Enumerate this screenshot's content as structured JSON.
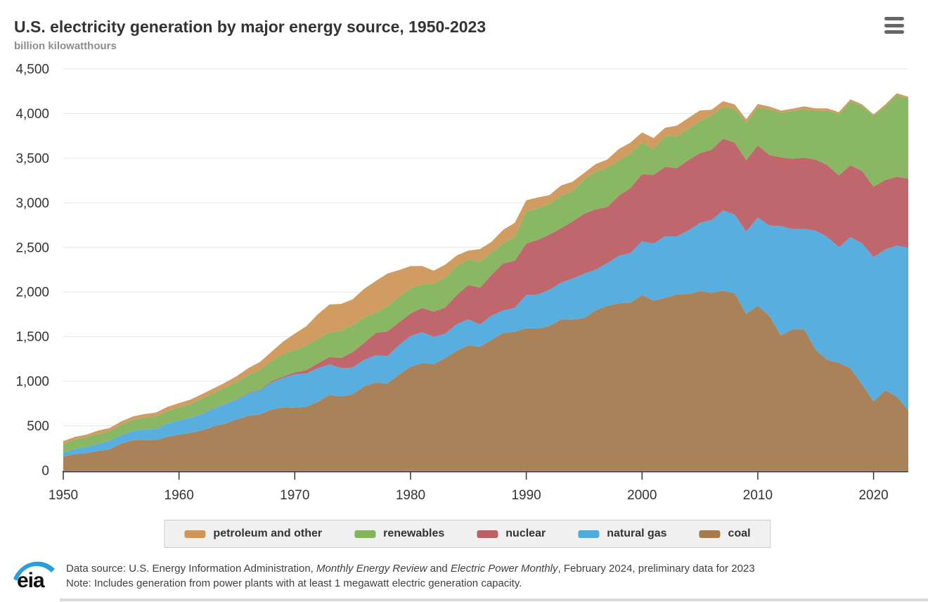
{
  "header": {
    "title": "U.S. electricity generation by major energy source, 1950-2023",
    "subtitle": "billion kilowatthours",
    "menu_icon": "hamburger-icon"
  },
  "chart_data": {
    "type": "area",
    "stacking": "stacked",
    "title": "U.S. electricity generation by major energy source, 1950-2023",
    "ylabel": "billion kilowatthours",
    "xlabel": "",
    "ylim": [
      0,
      4500
    ],
    "ytick_step": 500,
    "yticks": [
      0,
      500,
      1000,
      1500,
      2000,
      2500,
      3000,
      3500,
      4000,
      4500
    ],
    "xticks": [
      1950,
      1960,
      1970,
      1980,
      1990,
      2000,
      2010,
      2020
    ],
    "grid": true,
    "legend_position": "bottom",
    "legend": [
      "petroleum and other",
      "renewables",
      "nuclear",
      "natural gas",
      "coal"
    ],
    "years": [
      1950,
      1951,
      1952,
      1953,
      1954,
      1955,
      1956,
      1957,
      1958,
      1959,
      1960,
      1961,
      1962,
      1963,
      1964,
      1965,
      1966,
      1967,
      1968,
      1969,
      1970,
      1971,
      1972,
      1973,
      1974,
      1975,
      1976,
      1977,
      1978,
      1979,
      1980,
      1981,
      1982,
      1983,
      1984,
      1985,
      1986,
      1987,
      1988,
      1989,
      1990,
      1991,
      1992,
      1993,
      1994,
      1995,
      1996,
      1997,
      1998,
      1999,
      2000,
      2001,
      2002,
      2003,
      2004,
      2005,
      2006,
      2007,
      2008,
      2009,
      2010,
      2011,
      2012,
      2013,
      2014,
      2015,
      2016,
      2017,
      2018,
      2019,
      2020,
      2021,
      2022,
      2023
    ],
    "series": [
      {
        "name": "coal",
        "color": "#a57b50",
        "values": [
          155,
          185,
          195,
          219,
          239,
          301,
          339,
          346,
          344,
          378,
          403,
          422,
          450,
          494,
          526,
          571,
          613,
          630,
          685,
          706,
          704,
          713,
          771,
          848,
          828,
          853,
          944,
          985,
          976,
          1075,
          1162,
          1203,
          1192,
          1259,
          1342,
          1402,
          1386,
          1464,
          1541,
          1554,
          1594,
          1591,
          1621,
          1690,
          1691,
          1709,
          1795,
          1845,
          1874,
          1881,
          1966,
          1904,
          1933,
          1974,
          1978,
          2013,
          1991,
          2016,
          1986,
          1756,
          1847,
          1733,
          1514,
          1581,
          1582,
          1352,
          1239,
          1206,
          1146,
          966,
          774,
          898,
          831,
          675
        ]
      },
      {
        "name": "natural gas",
        "color": "#4fabdd",
        "values": [
          45,
          57,
          68,
          80,
          94,
          95,
          104,
          115,
          120,
          147,
          158,
          169,
          184,
          202,
          220,
          222,
          251,
          265,
          304,
          333,
          373,
          374,
          376,
          341,
          320,
          300,
          295,
          306,
          305,
          329,
          346,
          346,
          305,
          274,
          297,
          292,
          249,
          273,
          253,
          267,
          373,
          381,
          404,
          415,
          460,
          496,
          455,
          479,
          531,
          556,
          601,
          639,
          691,
          650,
          710,
          761,
          816,
          897,
          883,
          921,
          988,
          1013,
          1225,
          1124,
          1126,
          1335,
          1378,
          1296,
          1468,
          1582,
          1617,
          1579,
          1689,
          1821
        ]
      },
      {
        "name": "nuclear",
        "color": "#bd5f66",
        "values": [
          0,
          0,
          0,
          0,
          0,
          0,
          0,
          0,
          0,
          0,
          1,
          2,
          2,
          3,
          3,
          4,
          6,
          8,
          13,
          14,
          22,
          38,
          54,
          83,
          114,
          173,
          191,
          251,
          276,
          255,
          251,
          273,
          283,
          294,
          328,
          384,
          414,
          455,
          527,
          529,
          577,
          613,
          619,
          610,
          640,
          673,
          675,
          629,
          674,
          728,
          754,
          769,
          780,
          764,
          789,
          782,
          787,
          806,
          806,
          799,
          807,
          790,
          769,
          789,
          797,
          797,
          806,
          805,
          807,
          809,
          790,
          778,
          772,
          775
        ]
      },
      {
        "name": "renewables",
        "color": "#84b35c",
        "values": [
          96,
          105,
          109,
          109,
          110,
          116,
          125,
          132,
          144,
          141,
          146,
          152,
          172,
          170,
          180,
          197,
          199,
          225,
          226,
          254,
          251,
          272,
          277,
          275,
          304,
          303,
          287,
          224,
          285,
          283,
          285,
          264,
          312,
          336,
          324,
          287,
          294,
          253,
          228,
          267,
          357,
          356,
          342,
          365,
          340,
          383,
          427,
          440,
          395,
          390,
          356,
          288,
          343,
          355,
          351,
          357,
          385,
          353,
          382,
          421,
          428,
          513,
          502,
          534,
          546,
          546,
          611,
          687,
          713,
          728,
          792,
          826,
          913,
          894
        ]
      },
      {
        "name": "petroleum and other",
        "color": "#cd9759",
        "values": [
          34,
          30,
          30,
          39,
          33,
          37,
          37,
          40,
          41,
          47,
          48,
          50,
          49,
          52,
          57,
          65,
          79,
          89,
          104,
          138,
          184,
          220,
          274,
          314,
          301,
          289,
          320,
          358,
          365,
          304,
          246,
          206,
          147,
          144,
          120,
          100,
          137,
          118,
          149,
          158,
          127,
          119,
          100,
          113,
          105,
          75,
          82,
          93,
          129,
          119,
          111,
          125,
          95,
          120,
          122,
          122,
          64,
          66,
          46,
          39,
          37,
          30,
          23,
          27,
          30,
          28,
          24,
          21,
          25,
          19,
          17,
          19,
          23,
          23
        ]
      }
    ]
  },
  "footer": {
    "logo_text": "eia",
    "line1_prefix": "Data source: U.S. Energy Information Administration, ",
    "line1_italic1": "Monthly Energy Review",
    "line1_mid": " and ",
    "line1_italic2": "Electric Power Monthly",
    "line1_suffix": ", February 2024, preliminary data for 2023",
    "line2": "Note: Includes generation from power plants with at least 1 megawatt electric generation capacity."
  },
  "colors": {
    "title_text": "#333333",
    "subtitle_text": "#8d8d8d",
    "gridline": "#e6e6e6",
    "axis": "#333333",
    "legend_bg": "#f0f0f0",
    "legend_border": "#cccccc",
    "eia_blue": "#2b9fd9"
  }
}
